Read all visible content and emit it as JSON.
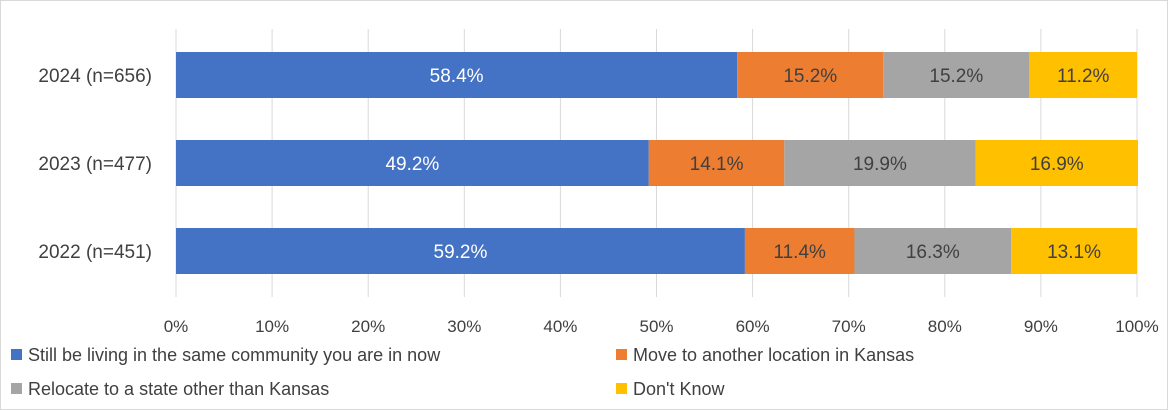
{
  "chart_data": {
    "type": "bar",
    "orientation": "horizontal",
    "stacked": true,
    "title": "",
    "xlabel": "",
    "ylabel": "",
    "categories": [
      "2024 (n=656)",
      "2023 (n=477)",
      "2022 (n=451)"
    ],
    "series": [
      {
        "name": "Still be living in the same community you are in now",
        "color": "#4472c4",
        "label_color": "#ffffff",
        "values": [
          58.4,
          49.2,
          59.2
        ],
        "labels": [
          "58.4%",
          "49.2%",
          "59.2%"
        ]
      },
      {
        "name": "Move to another location in Kansas",
        "color": "#ed7d31",
        "label_color": "#404040",
        "values": [
          15.2,
          14.1,
          11.4
        ],
        "labels": [
          "15.2%",
          "14.1%",
          "11.4%"
        ]
      },
      {
        "name": "Relocate to a state other than Kansas",
        "color": "#a5a5a5",
        "label_color": "#404040",
        "values": [
          15.2,
          19.9,
          16.3
        ],
        "labels": [
          "15.2%",
          "19.9%",
          "16.3%"
        ]
      },
      {
        "name": "Don't Know",
        "color": "#ffc000",
        "label_color": "#404040",
        "values": [
          11.2,
          16.9,
          13.1
        ],
        "labels": [
          "11.2%",
          "16.9%",
          "13.1%"
        ]
      }
    ],
    "xlim": [
      0,
      100
    ],
    "xticks": [
      "0%",
      "10%",
      "20%",
      "30%",
      "40%",
      "50%",
      "60%",
      "70%",
      "80%",
      "90%",
      "100%"
    ],
    "grid": true,
    "legend_position": "bottom"
  }
}
